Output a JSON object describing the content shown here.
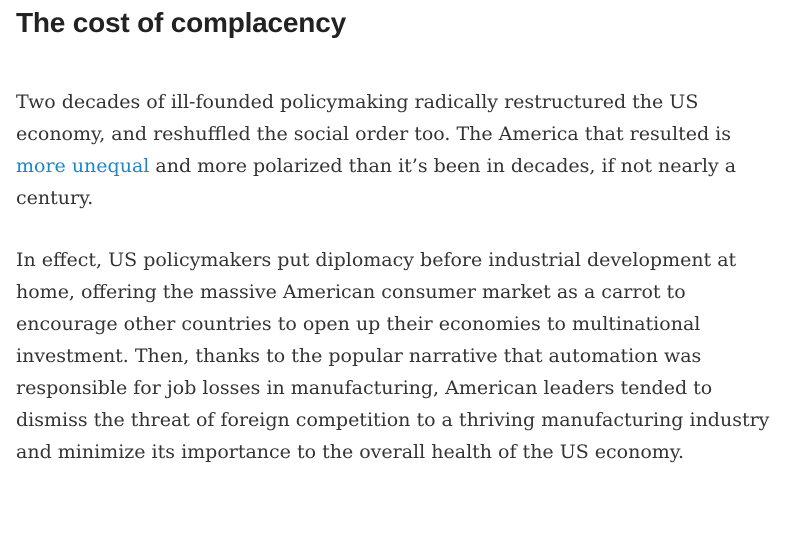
{
  "section": {
    "heading": "The cost of complacency"
  },
  "paragraphs": [
    {
      "before_link": "Two decades of ill-founded policymaking radically restructured the US economy, and reshuffled the social order too. The America that resulted is ",
      "link_text": "more unequal",
      "after_link": " and more polarized than it’s been in decades, if not nearly a century."
    },
    {
      "text": "In effect, US policymakers put diplomacy before industrial development at home, offering the massive American consumer market as a carrot to encourage other countries to open up their economies to multinational investment. Then, thanks to the popular narrative that automation was responsible for job losses in manufacturing, American leaders tended to dismiss the threat of foreign competition to a thriving manufacturing industry and minimize its importance to the overall health of the US economy."
    }
  ],
  "colors": {
    "link": "#1a87c9",
    "heading": "#222222",
    "body_text": "#333333"
  }
}
